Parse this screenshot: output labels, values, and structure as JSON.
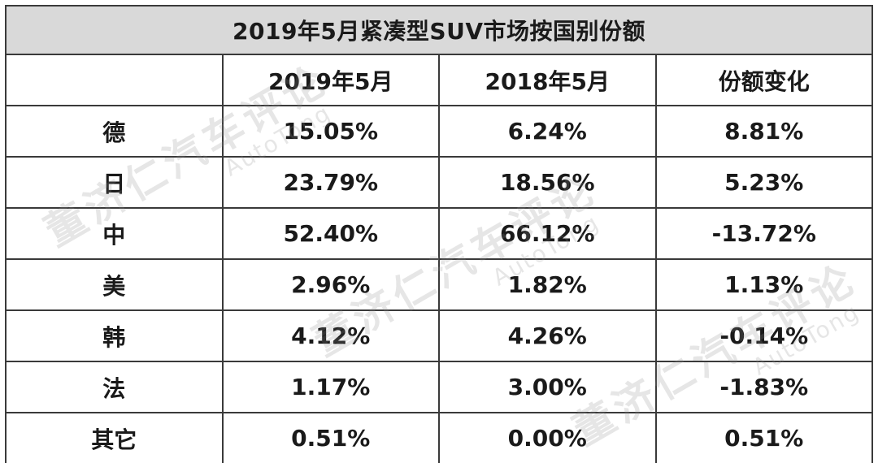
{
  "chart_data": {
    "type": "table",
    "title": "2019年5月紧凑型SUV市场按国别份额",
    "columns": [
      "",
      "2019年5月",
      "2018年5月",
      "份额变化"
    ],
    "rows": [
      {
        "label": "德",
        "cur": "15.05%",
        "prev": "6.24%",
        "change": "8.81%"
      },
      {
        "label": "日",
        "cur": "23.79%",
        "prev": "18.56%",
        "change": "5.23%"
      },
      {
        "label": "中",
        "cur": "52.40%",
        "prev": "66.12%",
        "change": "-13.72%"
      },
      {
        "label": "美",
        "cur": "2.96%",
        "prev": "1.82%",
        "change": "1.13%"
      },
      {
        "label": "韩",
        "cur": "4.12%",
        "prev": "4.26%",
        "change": "-0.14%"
      },
      {
        "label": "法",
        "cur": "1.17%",
        "prev": "3.00%",
        "change": "-1.83%"
      },
      {
        "label": "其它",
        "cur": "0.51%",
        "prev": "0.00%",
        "change": "0.51%"
      }
    ]
  },
  "colors": {
    "current_value": "#2e75b6",
    "positive_change": "#e02020",
    "negative_change": "#19a84a",
    "title_background": "#d9d9d9"
  },
  "watermark": {
    "cn": "董济仁汽车评论",
    "en": "AutoTong"
  }
}
